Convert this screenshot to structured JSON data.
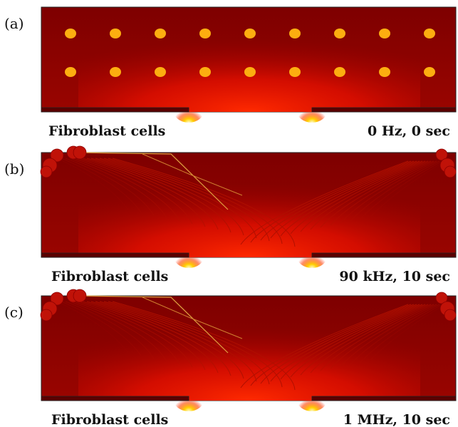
{
  "panels": [
    {
      "label": "(a)",
      "left_caption": "Fibroblast cells",
      "right_caption": "0 Hz, 0 sec"
    },
    {
      "label": "(b)",
      "left_caption": "Fibroblast cells",
      "right_caption": "90 kHz, 10 sec"
    },
    {
      "label": "(c)",
      "left_caption": "Fibroblast cells",
      "right_caption": "1 MHz, 10 sec"
    }
  ]
}
